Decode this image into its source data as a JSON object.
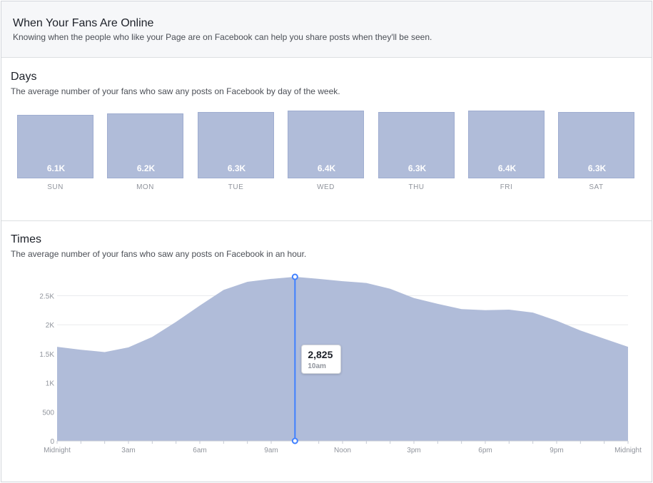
{
  "header": {
    "title": "When Your Fans Are Online",
    "subtitle": "Knowing when the people who like your Page are on Facebook can help you share posts when they'll be seen."
  },
  "days_section": {
    "title": "Days",
    "subtitle": "The average number of your fans who saw any posts on Facebook by day of the week."
  },
  "times_section": {
    "title": "Times",
    "subtitle": "The average number of your fans who saw any posts on Facebook in an hour.",
    "tooltip": {
      "value": "2,825",
      "label": "10am"
    }
  },
  "colors": {
    "fill": "#b0bcd9",
    "fill_stroke": "#9fadd0",
    "cursor": "#4080ff",
    "grid": "#e9ebee",
    "axis_text": "#90949c"
  },
  "chart_data": [
    {
      "type": "bar",
      "title": "Days",
      "categories": [
        "SUN",
        "MON",
        "TUE",
        "WED",
        "THU",
        "FRI",
        "SAT"
      ],
      "values": [
        6100,
        6200,
        6300,
        6400,
        6300,
        6400,
        6300
      ],
      "value_labels": [
        "6.1K",
        "6.2K",
        "6.3K",
        "6.4K",
        "6.3K",
        "6.4K",
        "6.3K"
      ]
    },
    {
      "type": "area",
      "title": "Times",
      "x_ticks": [
        "Midnight",
        "3am",
        "6am",
        "9am",
        "Noon",
        "3pm",
        "6pm",
        "9pm",
        "Midnight"
      ],
      "y_ticks": [
        "0",
        "500",
        "1K",
        "1.5K",
        "2K",
        "2.5K"
      ],
      "y_tick_values": [
        0,
        500,
        1000,
        1500,
        2000,
        2500
      ],
      "ylim": [
        0,
        2825
      ],
      "x": [
        0,
        1,
        2,
        3,
        4,
        5,
        6,
        7,
        8,
        9,
        10,
        11,
        12,
        13,
        14,
        15,
        16,
        17,
        18,
        19,
        20,
        21,
        22,
        23,
        24
      ],
      "values": [
        1620,
        1570,
        1530,
        1610,
        1790,
        2050,
        2330,
        2600,
        2740,
        2790,
        2825,
        2790,
        2750,
        2720,
        2620,
        2460,
        2360,
        2270,
        2250,
        2260,
        2210,
        2070,
        1900,
        1760,
        1620
      ],
      "highlight": {
        "x": 10,
        "value": 2825,
        "label": "10am"
      },
      "grid": true
    }
  ]
}
